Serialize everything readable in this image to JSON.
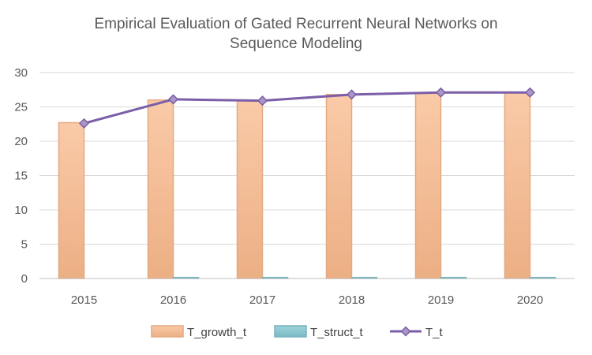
{
  "chart_data": {
    "type": "bar",
    "title_lines": [
      "Empirical Evaluation of Gated Recurrent Neural Networks on",
      "Sequence Modeling"
    ],
    "categories": [
      "2015",
      "2016",
      "2017",
      "2018",
      "2019",
      "2020"
    ],
    "series": [
      {
        "name": "T_growth_t",
        "type": "bar",
        "color": "#f8b88b",
        "values": [
          22.7,
          26.0,
          25.9,
          26.8,
          27.1,
          27.1
        ]
      },
      {
        "name": "T_struct_t",
        "type": "bar",
        "color": "#7fc4cf",
        "values": [
          0,
          0.15,
          0.15,
          0.15,
          0.15,
          0.15
        ]
      },
      {
        "name": "T_t",
        "type": "line",
        "color": "#7b5ea7",
        "marker": "diamond",
        "values": [
          22.6,
          26.1,
          25.9,
          26.8,
          27.1,
          27.1
        ]
      }
    ],
    "ylim": [
      0,
      30
    ],
    "yticks": [
      "0",
      "5",
      "10",
      "15",
      "20",
      "25",
      "30"
    ],
    "grid": true,
    "legend_position": "bottom"
  }
}
